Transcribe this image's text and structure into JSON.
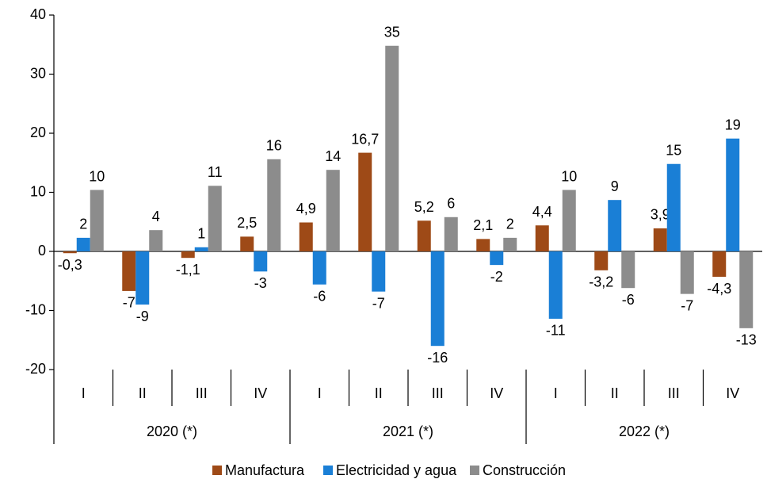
{
  "chart_data": {
    "type": "bar",
    "categories": [
      "I",
      "II",
      "III",
      "IV",
      "I",
      "II",
      "III",
      "IV",
      "I",
      "II",
      "III",
      "IV"
    ],
    "years": [
      "2020 (*)",
      "2021 (*)",
      "2022 (*)"
    ],
    "series": [
      {
        "name": "Manufactura",
        "color": "#9e4a17",
        "values": [
          -0.3,
          -6.7,
          -1.1,
          2.5,
          4.9,
          16.7,
          5.2,
          2.1,
          4.4,
          -3.2,
          3.9,
          -4.3
        ],
        "value_labels": [
          "-0,3",
          "-7",
          "-1,1",
          "2,5",
          "4,9",
          "16,7",
          "5,2",
          "2,1",
          "4,4",
          "-3,2",
          "3,9",
          "-4,3"
        ]
      },
      {
        "name": "Electricidad y agua",
        "color": "#1a7fd6",
        "values": [
          2.3,
          -9,
          0.7,
          -3.4,
          -5.6,
          -6.8,
          -16,
          -2.3,
          -11.4,
          8.7,
          14.8,
          19.1
        ],
        "value_labels": [
          "2",
          "-9",
          "1",
          "-3",
          "-6",
          "-7",
          "-16",
          "-2",
          "-11",
          "9",
          "15",
          "19"
        ]
      },
      {
        "name": "Construcción",
        "color": "#8c8c8c",
        "values": [
          10.4,
          3.6,
          11.1,
          15.6,
          13.8,
          34.8,
          5.8,
          2.3,
          10.4,
          -6.2,
          -7.2,
          -13
        ],
        "value_labels": [
          "10",
          "4",
          "11",
          "16",
          "14",
          "35",
          "6",
          "2",
          "10",
          "-6",
          "-7",
          "-13"
        ]
      }
    ],
    "ylim": [
      -20,
      40
    ],
    "yticks": [
      -20,
      -10,
      0,
      10,
      20,
      30,
      40
    ],
    "legend": "bottom"
  }
}
